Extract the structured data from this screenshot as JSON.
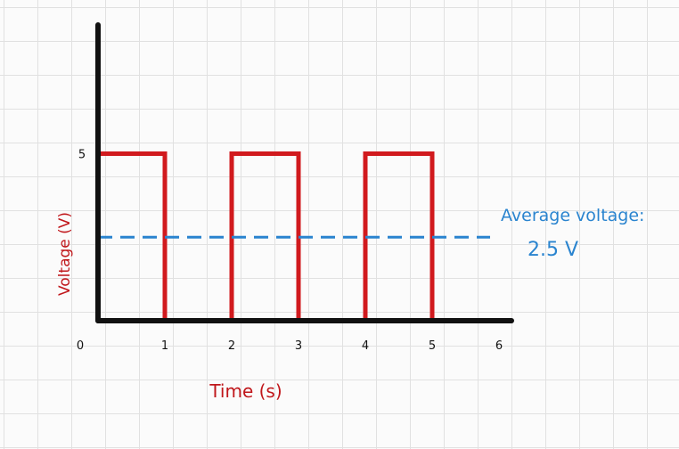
{
  "chart_data": {
    "type": "line",
    "title": "",
    "xlabel": "Time (s)",
    "ylabel": "Voltage (V)",
    "xlim": [
      0,
      6
    ],
    "ylim": [
      0,
      5
    ],
    "x_ticks": [
      "0",
      "1",
      "2",
      "3",
      "4",
      "5",
      "6"
    ],
    "y_ticks": [
      "5"
    ],
    "grid": true,
    "series": [
      {
        "name": "",
        "color": "#d11a1e",
        "x": [
          0,
          1,
          1,
          2,
          2,
          3,
          3,
          4,
          4,
          5,
          5
        ],
        "y": [
          5,
          5,
          0,
          0,
          5,
          5,
          0,
          0,
          5,
          5,
          0
        ]
      }
    ],
    "reference_line": {
      "y": 2.5,
      "x_range": [
        0,
        6
      ],
      "style": "dashed",
      "color": "#2a84cf"
    },
    "annotation": {
      "line1": "Average voltage:",
      "line2": "2.5 V"
    }
  }
}
